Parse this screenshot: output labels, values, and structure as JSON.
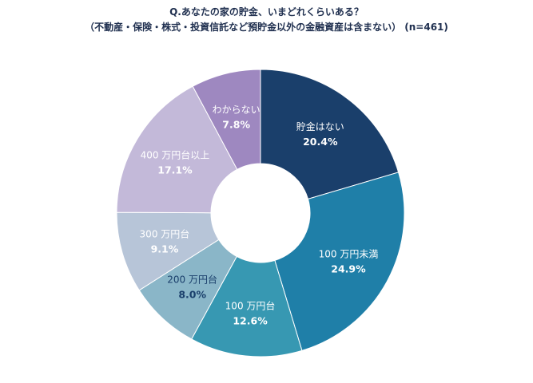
{
  "chart_data": {
    "type": "pie",
    "title": "Q.あなたの家の貯金、いまどれくらいある？",
    "subtitle": "（不動産・保険・株式・投資信託など預貯金以外の金融資産は含まない） (n=461)",
    "legend": "none",
    "slices": [
      {
        "label": "貯金はない",
        "value": 20.4,
        "value_label": "20.4%",
        "color": "#1a3f6b",
        "text_color": "#ffffff"
      },
      {
        "label": "100 万円未満",
        "value": 24.9,
        "value_label": "24.9%",
        "color": "#1f7fa8",
        "text_color": "#ffffff"
      },
      {
        "label": "100 万円台",
        "value": 12.6,
        "value_label": "12.6%",
        "color": "#3798b2",
        "text_color": "#ffffff"
      },
      {
        "label": "200 万円台",
        "value": 8.0,
        "value_label": "8.0%",
        "color": "#8ab6c8",
        "text_color": "#1a3f6b"
      },
      {
        "label": "300 万円台",
        "value": 9.1,
        "value_label": "9.1%",
        "color": "#b7c5d8",
        "text_color": "#ffffff"
      },
      {
        "label": "400 万円台以上",
        "value": 17.1,
        "value_label": "17.1%",
        "color": "#c3b9d9",
        "text_color": "#ffffff"
      },
      {
        "label": "わからない",
        "value": 7.8,
        "value_label": "7.8%",
        "color": "#9e88c0",
        "text_color": "#ffffff"
      }
    ]
  }
}
